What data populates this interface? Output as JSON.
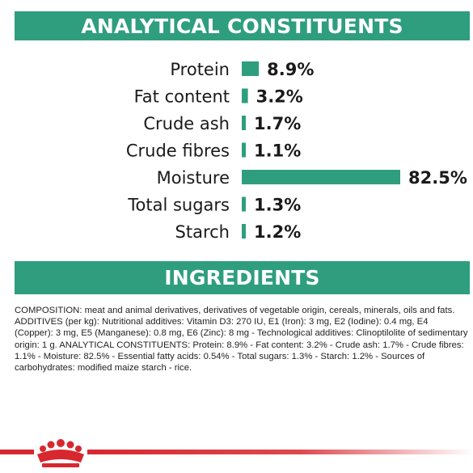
{
  "colors": {
    "accent": "#2e9e7e",
    "brand_red": "#d7282f"
  },
  "headings": {
    "analytical": "ANALYTICAL CONSTITUENTS",
    "ingredients": "INGREDIENTS"
  },
  "chart_data": {
    "type": "bar",
    "orientation": "horizontal",
    "categories": [
      "Protein",
      "Fat content",
      "Crude ash",
      "Crude fibres",
      "Moisture",
      "Total sugars",
      "Starch"
    ],
    "values": [
      8.9,
      3.2,
      1.7,
      1.1,
      82.5,
      1.3,
      1.2
    ],
    "value_labels": [
      "8.9%",
      "3.2%",
      "1.7%",
      "1.1%",
      "82.5%",
      "1.3%",
      "1.2%"
    ],
    "title": "ANALYTICAL CONSTITUENTS",
    "xlim": [
      0,
      82.5
    ],
    "grid": false
  },
  "composition_text": "COMPOSITION: meat and animal derivatives, derivatives of vegetable origin, cereals, minerals, oils and fats. ADDITIVES (per kg): Nutritional additives: Vitamin D3: 270 IU, E1 (Iron): 3 mg, E2 (Iodine): 0.4 mg, E4 (Copper): 3 mg, E5 (Manganese): 0.8 mg, E6 (Zinc): 8 mg - Technological additives: Clinoptilolite of sedimentary origin: 1 g. ANALYTICAL CONSTITUENTS: Protein: 8.9% - Fat content: 3.2% - Crude ash: 1.7% - Crude fibres: 1.1% - Moisture: 82.5% - Essential fatty acids: 0.54% - Total sugars: 1.3% - Starch: 1.2% - Sources of carbohydrates: modified maize starch - rice.",
  "footer": {
    "logo_icon": "crown-icon"
  }
}
